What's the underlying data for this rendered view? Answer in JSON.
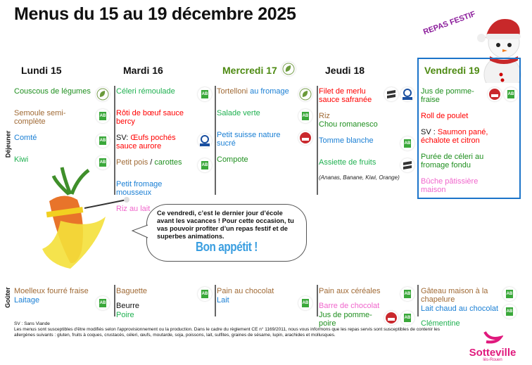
{
  "title": "Menus du 15 au 19 décembre 2025",
  "festive_label": "REPAS FESTIF",
  "sections": {
    "lunch": "Déjeuner",
    "snack": "Goûter"
  },
  "colors": {
    "brown": "#a06a35",
    "green": "#1f8f1f",
    "lightgreen": "#1fb050",
    "blue": "#1a7fd4",
    "red": "#ff0000",
    "pink": "#f066cc",
    "black": "#111111",
    "vendredi_border": "#1c74c9",
    "festif": "#8a1a9a"
  },
  "days": [
    {
      "label": "Lundi 15",
      "color": "#111111",
      "head_icon": "",
      "lunch": [
        {
          "parts": [
            {
              "t": "Couscous de légumes",
              "c": "green"
            }
          ],
          "icons": [
            "veggie-leaf-icon"
          ]
        },
        {
          "parts": [
            {
              "t": "Semoule semi-complète",
              "c": "brown"
            }
          ],
          "icons": [
            "organic-ab-icon"
          ]
        },
        {
          "parts": [
            {
              "t": "Comté",
              "c": "blue"
            }
          ],
          "icons": [
            "organic-ab-icon"
          ]
        },
        {
          "parts": [
            {
              "t": "Kiwi",
              "c": "lightgreen"
            }
          ],
          "icons": [
            "organic-ab-icon"
          ]
        }
      ],
      "snack": [
        {
          "parts": [
            {
              "t": "Moelleux fourré fraise",
              "c": "brown"
            }
          ],
          "icons": []
        },
        {
          "parts": [
            {
              "t": "Laitage",
              "c": "blue"
            }
          ],
          "icons": [
            "organic-ab-icon"
          ]
        }
      ]
    },
    {
      "label": "Mardi 16",
      "color": "#111111",
      "head_icon": "",
      "lunch": [
        {
          "parts": [
            {
              "t": "Céleri rémoulade",
              "c": "lightgreen"
            }
          ],
          "icons": [
            "organic-ab-icon"
          ]
        },
        {
          "parts": [
            {
              "t": "Rôti de bœuf sauce bercy",
              "c": "red"
            }
          ],
          "icons": []
        },
        {
          "parts": [
            {
              "t": "SV: ",
              "c": "black"
            },
            {
              "t": "Œufs pochés sauce aurore",
              "c": "red"
            }
          ],
          "icons": [
            "quality-label-icon"
          ]
        },
        {
          "parts": [
            {
              "t": "Petit pois",
              "c": "brown"
            },
            {
              "t": " / ",
              "c": "black"
            },
            {
              "t": "carottes",
              "c": "green"
            }
          ],
          "icons": [
            "organic-ab-icon"
          ]
        },
        {
          "parts": [
            {
              "t": "Petit fromage mousseux",
              "c": "blue"
            }
          ],
          "icons": []
        },
        {
          "parts": [
            {
              "t": "Riz au lait",
              "c": "pink"
            }
          ],
          "icons": []
        }
      ],
      "snack": [
        {
          "parts": [
            {
              "t": "Baguette",
              "c": "brown"
            }
          ],
          "icons": [
            "organic-ab-icon"
          ]
        },
        {
          "parts": [
            {
              "t": "Beurre",
              "c": "black"
            }
          ],
          "icons": []
        },
        {
          "parts": [
            {
              "t": "Poire",
              "c": "lightgreen"
            }
          ],
          "icons": []
        }
      ]
    },
    {
      "label": "Mercredi 17",
      "color": "#4d8a12",
      "head_icon": "veggie-leaf-icon",
      "lunch": [
        {
          "parts": [
            {
              "t": "Tortelloni ",
              "c": "brown"
            },
            {
              "t": "au fromage",
              "c": "blue"
            }
          ],
          "icons": [
            "veggie-leaf-icon"
          ]
        },
        {
          "parts": [
            {
              "t": "Salade verte",
              "c": "lightgreen"
            }
          ],
          "icons": [
            "organic-ab-icon"
          ]
        },
        {
          "parts": [
            {
              "t": "Petit suisse nature sucré",
              "c": "blue"
            }
          ],
          "icons": [
            "local-product-icon"
          ]
        },
        {
          "parts": [
            {
              "t": "Compote",
              "c": "green"
            }
          ],
          "icons": []
        }
      ],
      "snack": [
        {
          "parts": [
            {
              "t": "Pain au chocolat",
              "c": "brown"
            }
          ],
          "icons": []
        },
        {
          "parts": [
            {
              "t": "Lait",
              "c": "blue"
            }
          ],
          "icons": [
            "organic-ab-icon"
          ]
        }
      ]
    },
    {
      "label": "Jeudi 18",
      "color": "#111111",
      "head_icon": "",
      "lunch": [
        {
          "parts": [
            {
              "t": "Filet de merlu sauce safranée",
              "c": "red"
            }
          ],
          "icons": [
            "sustainable-fishing-icon",
            "quality-label-icon"
          ]
        },
        {
          "parts": [
            {
              "t": "Riz",
              "c": "brown"
            },
            {
              "t": "\nChou romanesco",
              "c": "green"
            }
          ],
          "icons": []
        },
        {
          "parts": [
            {
              "t": "Tomme blanche",
              "c": "blue"
            }
          ],
          "icons": [
            "organic-ab-icon"
          ]
        },
        {
          "parts": [
            {
              "t": "Assiette de fruits",
              "c": "lightgreen"
            }
          ],
          "icons": [
            "sustainable-icon"
          ],
          "note": "(Ananas, Banane, Kiwi, Orange)"
        }
      ],
      "snack": [
        {
          "parts": [
            {
              "t": "Pain aux céréales",
              "c": "brown"
            }
          ],
          "icons": [
            "organic-ab-icon"
          ]
        },
        {
          "parts": [
            {
              "t": "Barre de chocolat",
              "c": "pink"
            }
          ],
          "icons": []
        },
        {
          "parts": [
            {
              "t": "Jus de pomme-poire",
              "c": "green"
            }
          ],
          "icons": [
            "local-product-icon",
            "organic-ab-icon"
          ]
        }
      ]
    },
    {
      "label": "Vendredi 19",
      "color": "#4d8a12",
      "head_icon": "",
      "lunch": [
        {
          "parts": [
            {
              "t": "Jus de pomme-fraise",
              "c": "green"
            }
          ],
          "icons": [
            "local-product-icon",
            "organic-ab-icon"
          ]
        },
        {
          "parts": [
            {
              "t": "Roll de poulet",
              "c": "red"
            }
          ],
          "icons": []
        },
        {
          "parts": [
            {
              "t": "SV : ",
              "c": "black"
            },
            {
              "t": "Saumon pané, échalote et citron",
              "c": "red"
            }
          ],
          "icons": []
        },
        {
          "parts": [
            {
              "t": "Purée de céleri au fromage fondu",
              "c": "green"
            }
          ],
          "icons": []
        },
        {
          "parts": [
            {
              "t": "Bûche pâtissière maison",
              "c": "pink"
            }
          ],
          "icons": []
        }
      ],
      "snack": [
        {
          "parts": [
            {
              "t": "Gâteau maison à la chapelure",
              "c": "brown"
            }
          ],
          "icons": [
            "organic-ab-icon"
          ]
        },
        {
          "parts": [
            {
              "t": "Lait chaud au chocolat",
              "c": "blue"
            }
          ],
          "icons": [
            "organic-ab-icon"
          ]
        },
        {
          "parts": [
            {
              "t": "Clémentine",
              "c": "lightgreen"
            }
          ],
          "icons": []
        }
      ]
    }
  ],
  "bubble": {
    "text": "Ce vendredi, c’est le dernier jour d’école avant les vacances ! Pour cette occasion, tu vas pouvoir profiter d’un repas festif et de superbes animations.",
    "greeting": "Bon appétit !"
  },
  "footer": {
    "legend": "SV : Sans Viande",
    "disclaimer": "Les menus sont susceptibles d'être modifiés selon l'approvisionnement ou la production. Dans le cadre du règlement CE n° 1169/2011, nous vous informons que les repas servis sont susceptibles de contenir les allergènes suivants : gluten, fruits à coques, crustacés, céleri, œufs, moutarde, soja, poissons, lait, sulfites, graines de sésame, lupin, arachides et mollusques."
  },
  "logo": {
    "name": "Sotteville",
    "sub": "lès-Rouen"
  }
}
